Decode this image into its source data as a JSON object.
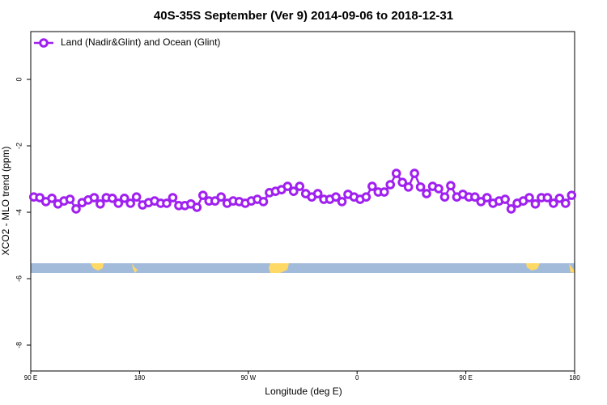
{
  "chart_data": {
    "type": "line",
    "title": "40S-35S September (Ver 9)   2014-09-06 to 2018-12-31",
    "xlabel": "Longitude (deg E)",
    "ylabel": "XCO2 - MLO trend (ppm)",
    "x": [
      92.5,
      97.5,
      102.5,
      107.5,
      112.5,
      117.5,
      122.5,
      127.5,
      132.5,
      137.5,
      142.5,
      147.5,
      152.5,
      157.5,
      162.5,
      167.5,
      172.5,
      177.5,
      182.5,
      187.5,
      192.5,
      197.5,
      202.5,
      207.5,
      212.5,
      217.5,
      222.5,
      227.5,
      232.5,
      237.5,
      242.5,
      247.5,
      252.5,
      257.5,
      262.5,
      267.5,
      272.5,
      277.5,
      282.5,
      287.5,
      292.5,
      297.5,
      302.5,
      307.5,
      312.5,
      317.5,
      322.5,
      327.5,
      332.5,
      337.5,
      342.5,
      347.5,
      352.5,
      357.5,
      362.5,
      367.5,
      372.5,
      377.5,
      382.5,
      387.5,
      392.5,
      397.5,
      402.5,
      407.5,
      412.5,
      417.5,
      422.5,
      427.5,
      432.5,
      437.5,
      442.5,
      447.5,
      452.5,
      457.5,
      462.5,
      467.5,
      472.5,
      477.5,
      482.5,
      487.5,
      492.5,
      497.5,
      502.5,
      507.5,
      512.5,
      517.5,
      522.5,
      527.5,
      532.5,
      537.5
    ],
    "series": [
      {
        "name": "Land (Nadir&Glint) and Ocean (Glint)",
        "color": "#a020f0",
        "values": [
          -3.54,
          -3.56,
          -3.68,
          -3.58,
          -3.75,
          -3.66,
          -3.61,
          -3.9,
          -3.71,
          -3.63,
          -3.56,
          -3.75,
          -3.56,
          -3.58,
          -3.73,
          -3.58,
          -3.73,
          -3.54,
          -3.78,
          -3.71,
          -3.66,
          -3.73,
          -3.73,
          -3.56,
          -3.8,
          -3.8,
          -3.75,
          -3.85,
          -3.49,
          -3.66,
          -3.66,
          -3.54,
          -3.73,
          -3.66,
          -3.68,
          -3.73,
          -3.66,
          -3.61,
          -3.68,
          -3.41,
          -3.37,
          -3.32,
          -3.22,
          -3.37,
          -3.22,
          -3.44,
          -3.54,
          -3.44,
          -3.61,
          -3.61,
          -3.54,
          -3.68,
          -3.46,
          -3.54,
          -3.61,
          -3.54,
          -3.22,
          -3.39,
          -3.39,
          -3.17,
          -2.83,
          -3.1,
          -3.24,
          -2.83,
          -3.24,
          -3.44,
          -3.22,
          -3.29,
          -3.54,
          -3.2,
          -3.54,
          -3.46,
          -3.54,
          -3.54,
          -3.68,
          -3.56,
          -3.73,
          -3.66,
          -3.61,
          -3.9,
          -3.73,
          -3.66,
          -3.56,
          -3.75,
          -3.56,
          -3.56,
          -3.73,
          -3.58,
          -3.73,
          -3.49
        ]
      }
    ],
    "xlim": [
      90,
      540
    ],
    "xticks": [
      {
        "value": 90,
        "label": "90 E"
      },
      180,
      {
        "value": 270,
        "label": "90 W"
      },
      {
        "value": 360,
        "label": "0"
      },
      {
        "value": 450,
        "label": "90 E"
      },
      {
        "value": 540,
        "label": "180"
      }
    ],
    "ylim": [
      -8.78,
      1.44
    ],
    "yticks": [
      0,
      -2,
      -4,
      -6,
      -8
    ],
    "legend": "upper left"
  }
}
